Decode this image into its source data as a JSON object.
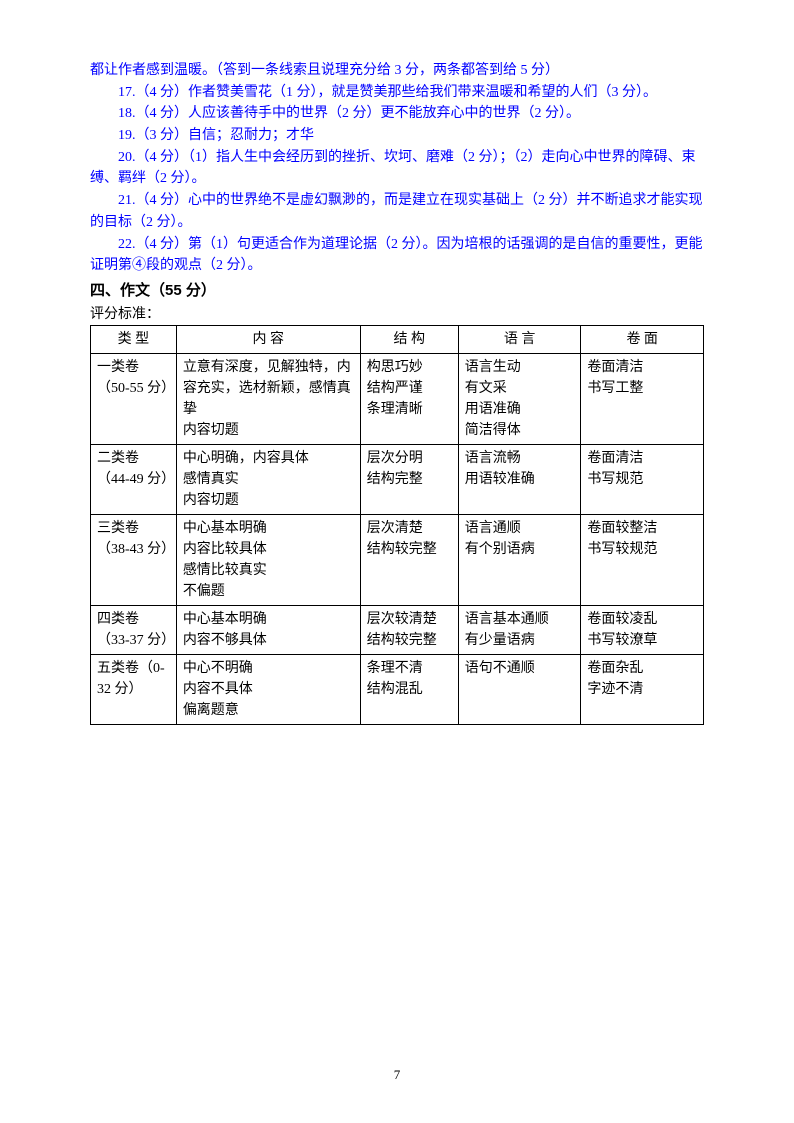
{
  "paragraphs": {
    "p0": "都让作者感到温暖。（答到一条线索且说理充分给 3 分，两条都答到给 5 分）",
    "p17": "17.（4 分）作者赞美雪花（1 分），就是赞美那些给我们带来温暖和希望的人们（3 分）。",
    "p18": "18.（4 分）人应该善待手中的世界（2 分）更不能放弃心中的世界（2 分）。",
    "p19": "19.（3 分）自信；忍耐力；才华",
    "p20": "20.（4 分）（1）指人生中会经历到的挫折、坎坷、磨难（2 分）；（2）走向心中世界的障碍、束缚、羁绊（2 分）。",
    "p21": "21.（4 分）心中的世界绝不是虚幻飘渺的，而是建立在现实基础上（2 分）并不断追求才能实现的目标（2 分）。",
    "p22": "22.（4 分）第（1）句更适合作为道理论据（2 分）。因为培根的话强调的是自信的重要性，更能证明第④段的观点（2 分）。"
  },
  "section_title": "四、作文（55 分）",
  "criteria_label": "评分标准：",
  "table": {
    "headers": {
      "type": "类  型",
      "content": "内  容",
      "structure": "结  构",
      "language": "语  言",
      "appearance": "卷  面"
    },
    "rows": [
      {
        "type": "一类卷（50-55 分）",
        "content": "立意有深度，见解独特，内容充实，选材新颖，感情真挚\n内容切题",
        "structure": "构思巧妙\n结构严谨\n条理清晰",
        "language": "语言生动\n有文采\n用语准确\n简洁得体",
        "appearance": "卷面清洁\n书写工整"
      },
      {
        "type": "二类卷（44-49 分）",
        "content": "中心明确，内容具体\n感情真实\n内容切题",
        "structure": "层次分明\n结构完整",
        "language": "语言流畅\n用语较准确",
        "appearance": "卷面清洁\n书写规范"
      },
      {
        "type": "三类卷（38-43 分）",
        "content": "中心基本明确\n内容比较具体\n感情比较真实\n不偏题",
        "structure": "层次清楚\n结构较完整",
        "language": "语言通顺\n有个别语病",
        "appearance": "卷面较整洁\n书写较规范"
      },
      {
        "type": "四类卷（33-37 分）",
        "content": "中心基本明确\n内容不够具体",
        "structure": "层次较清楚\n结构较完整",
        "language": "语言基本通顺\n有少量语病",
        "appearance": "卷面较凌乱\n书写较潦草"
      },
      {
        "type": "五类卷（0-32 分）",
        "content": "中心不明确\n内容不具体\n偏离题意",
        "structure": "条理不清\n结构混乱",
        "language": "语句不通顺",
        "appearance": "卷面杂乱\n字迹不清"
      }
    ]
  },
  "page_number": "7",
  "colors": {
    "blue": "#0000ff",
    "black": "#000000",
    "background": "#ffffff",
    "border": "#000000"
  },
  "typography": {
    "body_fontsize": 14,
    "title_fontsize": 15,
    "line_height": 1.55
  }
}
